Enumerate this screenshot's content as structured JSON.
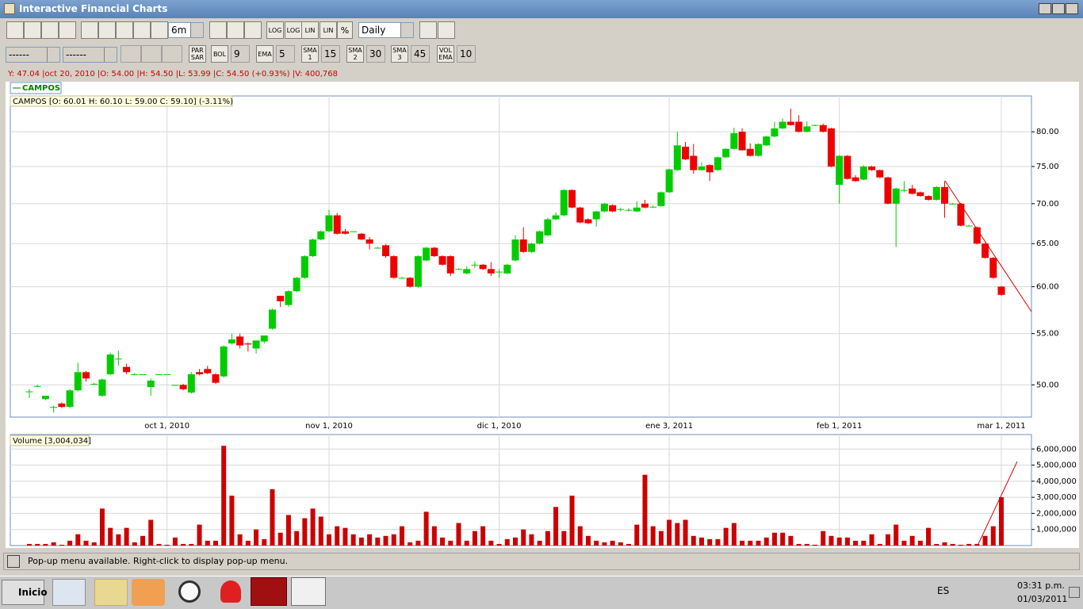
{
  "window": {
    "title": "Interactive Financial Charts"
  },
  "toolbar": {
    "period": "6m",
    "interval": "Daily",
    "scale_buttons": [
      "LOG",
      "LOG",
      "LIN",
      "LIN",
      "%"
    ]
  },
  "indicator_bar": {
    "selects": [
      "------",
      "------"
    ],
    "indicators": [
      {
        "label": "PAR SAR"
      },
      {
        "label": "BOL",
        "param": "9"
      },
      {
        "label": "EMA",
        "param": "5"
      },
      {
        "label": "SMA 1",
        "param": "15"
      },
      {
        "label": "SMA 2",
        "param": "30"
      },
      {
        "label": "SMA 3",
        "param": "45"
      },
      {
        "label": "VOL EMA",
        "param": "10"
      }
    ]
  },
  "crosshair": "Y: 47.04 |oct 20, 2010 |O: 54.00 |H: 54.50 |L: 53.99 |C: 54.50 (+0.93%) |V: 400,768",
  "status": "Pop-up menu available. Right-click to display pop-up menu.",
  "taskbar": {
    "start": "Inicio",
    "language": "ES",
    "time": "03:31 p.m.",
    "date": "01/03/2011"
  },
  "chart_data": [
    {
      "type": "candlestick",
      "annotation": "CAMPOS [O: 60.01  H: 60.10  L: 59.00  C: 59.10] (-3.11%)",
      "legend": "top-left",
      "log_scale": true,
      "grid": true,
      "categories": [
        null,
        null,
        null,
        null,
        null,
        null,
        null,
        null,
        null,
        null,
        null,
        null,
        null,
        null,
        null,
        null,
        null,
        "oct 1, 2010",
        null,
        null,
        null,
        null,
        null,
        null,
        null,
        null,
        null,
        null,
        null,
        null,
        null,
        null,
        null,
        null,
        null,
        null,
        null,
        "nov 1, 2010",
        null,
        null,
        null,
        null,
        null,
        null,
        null,
        null,
        null,
        null,
        null,
        null,
        null,
        null,
        null,
        null,
        null,
        null,
        null,
        null,
        "dic 1, 2010",
        null,
        null,
        null,
        null,
        null,
        null,
        null,
        null,
        null,
        null,
        null,
        null,
        null,
        null,
        null,
        null,
        null,
        null,
        null,
        null,
        "ene 3, 2011",
        null,
        null,
        null,
        null,
        null,
        null,
        null,
        null,
        null,
        null,
        null,
        null,
        null,
        null,
        null,
        null,
        null,
        null,
        null,
        null,
        "feb 1, 2011",
        null,
        null,
        null,
        null,
        null,
        null,
        null,
        null,
        null,
        null,
        null,
        null,
        null,
        null,
        null,
        null,
        null,
        null,
        null,
        "mar 1, 2011"
      ],
      "series": [
        {
          "name": "CAMPOS",
          "color": "#008000",
          "up_color": "#00cc00",
          "down_color": "#ee0000",
          "values": [
            [
              49.4,
              49.6,
              48.8,
              49.4
            ],
            [
              49.9,
              50.0,
              49.8,
              49.9
            ],
            [
              48.7,
              49.0,
              48.6,
              49.0
            ],
            [
              48.0,
              48.1,
              47.5,
              48.0
            ],
            [
              48.3,
              48.4,
              47.9,
              48.0
            ],
            [
              48.0,
              49.6,
              47.9,
              49.5
            ],
            [
              49.5,
              52.1,
              49.4,
              51.2
            ],
            [
              51.2,
              51.3,
              50.3,
              50.6
            ],
            [
              50.1,
              50.2,
              50.0,
              50.1
            ],
            [
              49.0,
              50.6,
              48.9,
              50.5
            ],
            [
              51.0,
              53.1,
              50.9,
              52.9
            ],
            [
              52.5,
              53.3,
              51.8,
              52.5
            ],
            [
              51.7,
              52.0,
              51.0,
              51.2
            ],
            [
              51.0,
              51.1,
              50.9,
              51.0
            ],
            [
              51.0,
              51.0,
              51.0,
              51.0
            ],
            [
              49.8,
              50.6,
              49.0,
              50.4
            ],
            [
              51.0,
              51.0,
              51.0,
              51.0
            ],
            [
              51.0,
              51.0,
              51.0,
              51.0
            ],
            [
              50.0,
              50.0,
              50.0,
              50.0
            ],
            [
              50.0,
              50.1,
              49.5,
              49.6
            ],
            [
              49.3,
              51.2,
              49.2,
              51.0
            ],
            [
              51.2,
              51.5,
              50.9,
              51.0
            ],
            [
              51.5,
              51.8,
              51.0,
              51.1
            ],
            [
              51.0,
              51.1,
              50.1,
              50.2
            ],
            [
              50.8,
              53.8,
              50.7,
              53.7
            ],
            [
              54.0,
              55.0,
              53.9,
              54.4
            ],
            [
              54.7,
              55.0,
              53.5,
              53.8
            ],
            [
              54.0,
              54.1,
              53.2,
              53.9
            ],
            [
              53.5,
              54.3,
              53.0,
              54.3
            ],
            [
              54.2,
              54.8,
              54.0,
              54.8
            ],
            [
              55.5,
              57.6,
              55.4,
              57.5
            ],
            [
              59.0,
              59.0,
              57.8,
              58.4
            ],
            [
              58.0,
              59.6,
              57.8,
              59.5
            ],
            [
              59.5,
              61.1,
              59.4,
              61.0
            ],
            [
              61.0,
              63.6,
              60.9,
              63.5
            ],
            [
              63.5,
              65.6,
              63.4,
              65.5
            ],
            [
              65.5,
              66.6,
              65.4,
              66.5
            ],
            [
              66.5,
              69.2,
              66.4,
              68.5
            ],
            [
              68.5,
              68.8,
              66.1,
              66.2
            ],
            [
              66.5,
              66.8,
              66.1,
              66.2
            ],
            [
              66.5,
              66.5,
              66.4,
              66.5
            ],
            [
              66.2,
              66.3,
              65.4,
              65.5
            ],
            [
              65.5,
              65.8,
              64.3,
              65.0
            ],
            [
              64.5,
              64.6,
              64.4,
              64.5
            ],
            [
              64.8,
              64.9,
              63.3,
              63.5
            ],
            [
              63.5,
              63.6,
              60.9,
              61.0
            ],
            [
              61.0,
              61.1,
              60.9,
              61.0
            ],
            [
              61.0,
              61.1,
              59.9,
              60.0
            ],
            [
              60.0,
              63.6,
              59.9,
              63.5
            ],
            [
              63.0,
              64.6,
              62.9,
              64.5
            ],
            [
              64.5,
              64.6,
              63.4,
              63.5
            ],
            [
              63.5,
              63.6,
              62.4,
              62.5
            ],
            [
              63.5,
              63.6,
              61.2,
              61.5
            ],
            [
              62.0,
              62.1,
              61.9,
              62.0
            ],
            [
              61.5,
              62.3,
              61.4,
              62.0
            ],
            [
              62.5,
              62.9,
              62.1,
              62.5
            ],
            [
              62.5,
              62.6,
              61.9,
              62.0
            ],
            [
              62.0,
              62.8,
              61.2,
              61.5
            ],
            [
              61.7,
              62.0,
              61.0,
              61.7
            ],
            [
              61.5,
              62.6,
              61.4,
              62.5
            ],
            [
              63.0,
              66.0,
              62.9,
              65.5
            ],
            [
              65.5,
              67.0,
              63.9,
              64.0
            ],
            [
              64.0,
              65.1,
              63.9,
              65.0
            ],
            [
              65.0,
              66.6,
              64.9,
              66.5
            ],
            [
              66.0,
              68.2,
              65.9,
              68.0
            ],
            [
              68.0,
              68.9,
              67.9,
              68.5
            ],
            [
              68.5,
              71.9,
              68.4,
              71.8
            ],
            [
              71.8,
              71.9,
              69.4,
              69.5
            ],
            [
              69.5,
              69.6,
              67.5,
              67.6
            ],
            [
              68.0,
              68.1,
              67.4,
              67.5
            ],
            [
              68.0,
              69.1,
              67.1,
              69.0
            ],
            [
              69.0,
              70.1,
              68.9,
              70.0
            ],
            [
              69.8,
              69.9,
              68.9,
              69.0
            ],
            [
              69.3,
              69.5,
              69.0,
              69.3
            ],
            [
              69.2,
              69.4,
              69.0,
              69.2
            ],
            [
              69.0,
              70.3,
              68.9,
              69.5
            ],
            [
              70.0,
              70.5,
              69.4,
              69.5
            ],
            [
              69.6,
              69.8,
              69.5,
              69.6
            ],
            [
              69.7,
              71.6,
              69.6,
              71.5
            ],
            [
              71.5,
              74.7,
              71.4,
              74.6
            ],
            [
              74.5,
              80.0,
              74.4,
              78.0
            ],
            [
              77.8,
              78.5,
              75.9,
              76.0
            ],
            [
              76.5,
              78.2,
              74.0,
              74.5
            ],
            [
              74.5,
              75.6,
              74.4,
              75.0
            ],
            [
              75.2,
              75.3,
              73.0,
              74.2
            ],
            [
              74.5,
              76.4,
              74.4,
              76.3
            ],
            [
              76.3,
              77.6,
              76.2,
              77.5
            ],
            [
              77.5,
              80.6,
              77.4,
              79.8
            ],
            [
              80.0,
              80.5,
              77.2,
              77.3
            ],
            [
              77.5,
              78.3,
              76.4,
              76.5
            ],
            [
              76.5,
              78.3,
              76.4,
              78.2
            ],
            [
              78.0,
              79.4,
              77.9,
              79.3
            ],
            [
              79.3,
              81.5,
              79.2,
              80.5
            ],
            [
              80.5,
              82.0,
              80.4,
              81.5
            ],
            [
              81.5,
              83.5,
              80.9,
              81.0
            ],
            [
              81.5,
              82.5,
              79.9,
              80.0
            ],
            [
              80.0,
              81.6,
              79.9,
              80.8
            ],
            [
              81.0,
              81.1,
              80.9,
              81.0
            ],
            [
              81.0,
              81.2,
              79.9,
              80.0
            ],
            [
              80.5,
              80.6,
              74.9,
              75.0
            ],
            [
              72.5,
              76.6,
              70.0,
              76.5
            ],
            [
              76.5,
              76.6,
              73.2,
              73.3
            ],
            [
              73.5,
              73.8,
              72.9,
              73.0
            ],
            [
              73.2,
              75.2,
              73.1,
              75.0
            ],
            [
              75.0,
              75.1,
              74.4,
              74.5
            ],
            [
              74.5,
              74.6,
              73.4,
              73.5
            ],
            [
              73.5,
              73.6,
              69.9,
              70.0
            ],
            [
              70.0,
              72.1,
              64.6,
              72.0
            ],
            [
              71.8,
              73.0,
              71.5,
              71.8
            ],
            [
              72.0,
              72.5,
              71.2,
              71.3
            ],
            [
              71.5,
              71.6,
              70.9,
              71.0
            ],
            [
              71.0,
              71.1,
              70.4,
              70.5
            ],
            [
              70.5,
              72.3,
              70.4,
              72.2
            ],
            [
              72.2,
              73.0,
              68.2,
              70.0
            ],
            [
              70.0,
              70.1,
              69.9,
              70.0
            ],
            [
              70.0,
              70.1,
              67.1,
              67.2
            ],
            [
              67.2,
              67.3,
              67.1,
              67.2
            ],
            [
              67.0,
              67.1,
              64.9,
              65.0
            ],
            [
              65.0,
              65.1,
              63.2,
              63.3
            ],
            [
              63.3,
              63.4,
              60.9,
              61.0
            ],
            [
              60.01,
              60.1,
              59.0,
              59.1
            ]
          ]
        }
      ],
      "ylim": [
        47.1,
        85.5
      ],
      "yticks": [
        {
          "value": 50,
          "label": "50.00"
        },
        {
          "value": 55,
          "label": "55.00"
        },
        {
          "value": 60,
          "label": "60.00"
        },
        {
          "value": 65,
          "label": "65.00"
        },
        {
          "value": 70,
          "label": "70.00"
        },
        {
          "value": 75,
          "label": "75.00"
        },
        {
          "value": 80,
          "label": "80.00"
        }
      ]
    },
    {
      "type": "bar",
      "title": "Volume [3,004,034]",
      "color": "#cc0000",
      "grid": true,
      "values": [
        100000,
        100000,
        100000,
        200000,
        50000,
        300000,
        700000,
        300000,
        200000,
        2300000,
        1100000,
        700000,
        1100000,
        200000,
        600000,
        1600000,
        100000,
        50000,
        500000,
        100000,
        100000,
        1300000,
        300000,
        300000,
        6200000,
        3100000,
        700000,
        300000,
        1000000,
        400000,
        3500000,
        800000,
        1900000,
        900000,
        1700000,
        2300000,
        1800000,
        700000,
        1200000,
        1100000,
        700000,
        500000,
        700000,
        500000,
        600000,
        700000,
        1200000,
        200000,
        300000,
        2100000,
        1200000,
        500000,
        300000,
        1400000,
        300000,
        900000,
        1200000,
        300000,
        100000,
        400000,
        500000,
        1000000,
        700000,
        300000,
        900000,
        2400000,
        900000,
        3100000,
        1200000,
        600000,
        300000,
        200000,
        300000,
        200000,
        100000,
        1300000,
        4400000,
        1200000,
        900000,
        1600000,
        1400000,
        1600000,
        600000,
        500000,
        400000,
        400000,
        1100000,
        1400000,
        300000,
        300000,
        300000,
        500000,
        800000,
        800000,
        600000,
        100000,
        100000,
        50000,
        900000,
        600000,
        500000,
        500000,
        300000,
        300000,
        700000,
        100000,
        700000,
        1300000,
        300000,
        600000,
        300000,
        1100000,
        100000,
        200000,
        100000,
        50000,
        100000,
        100000,
        600000,
        1200000,
        3004034
      ],
      "ylim": [
        0,
        6900000
      ],
      "yticks": [
        {
          "value": 1000000,
          "label": "1,000,000"
        },
        {
          "value": 2000000,
          "label": "2,000,000"
        },
        {
          "value": 3000000,
          "label": "3,000,000"
        },
        {
          "value": 4000000,
          "label": "4,000,000"
        },
        {
          "value": 5000000,
          "label": "5,000,000"
        },
        {
          "value": 6000000,
          "label": "6,000,000"
        }
      ]
    }
  ]
}
